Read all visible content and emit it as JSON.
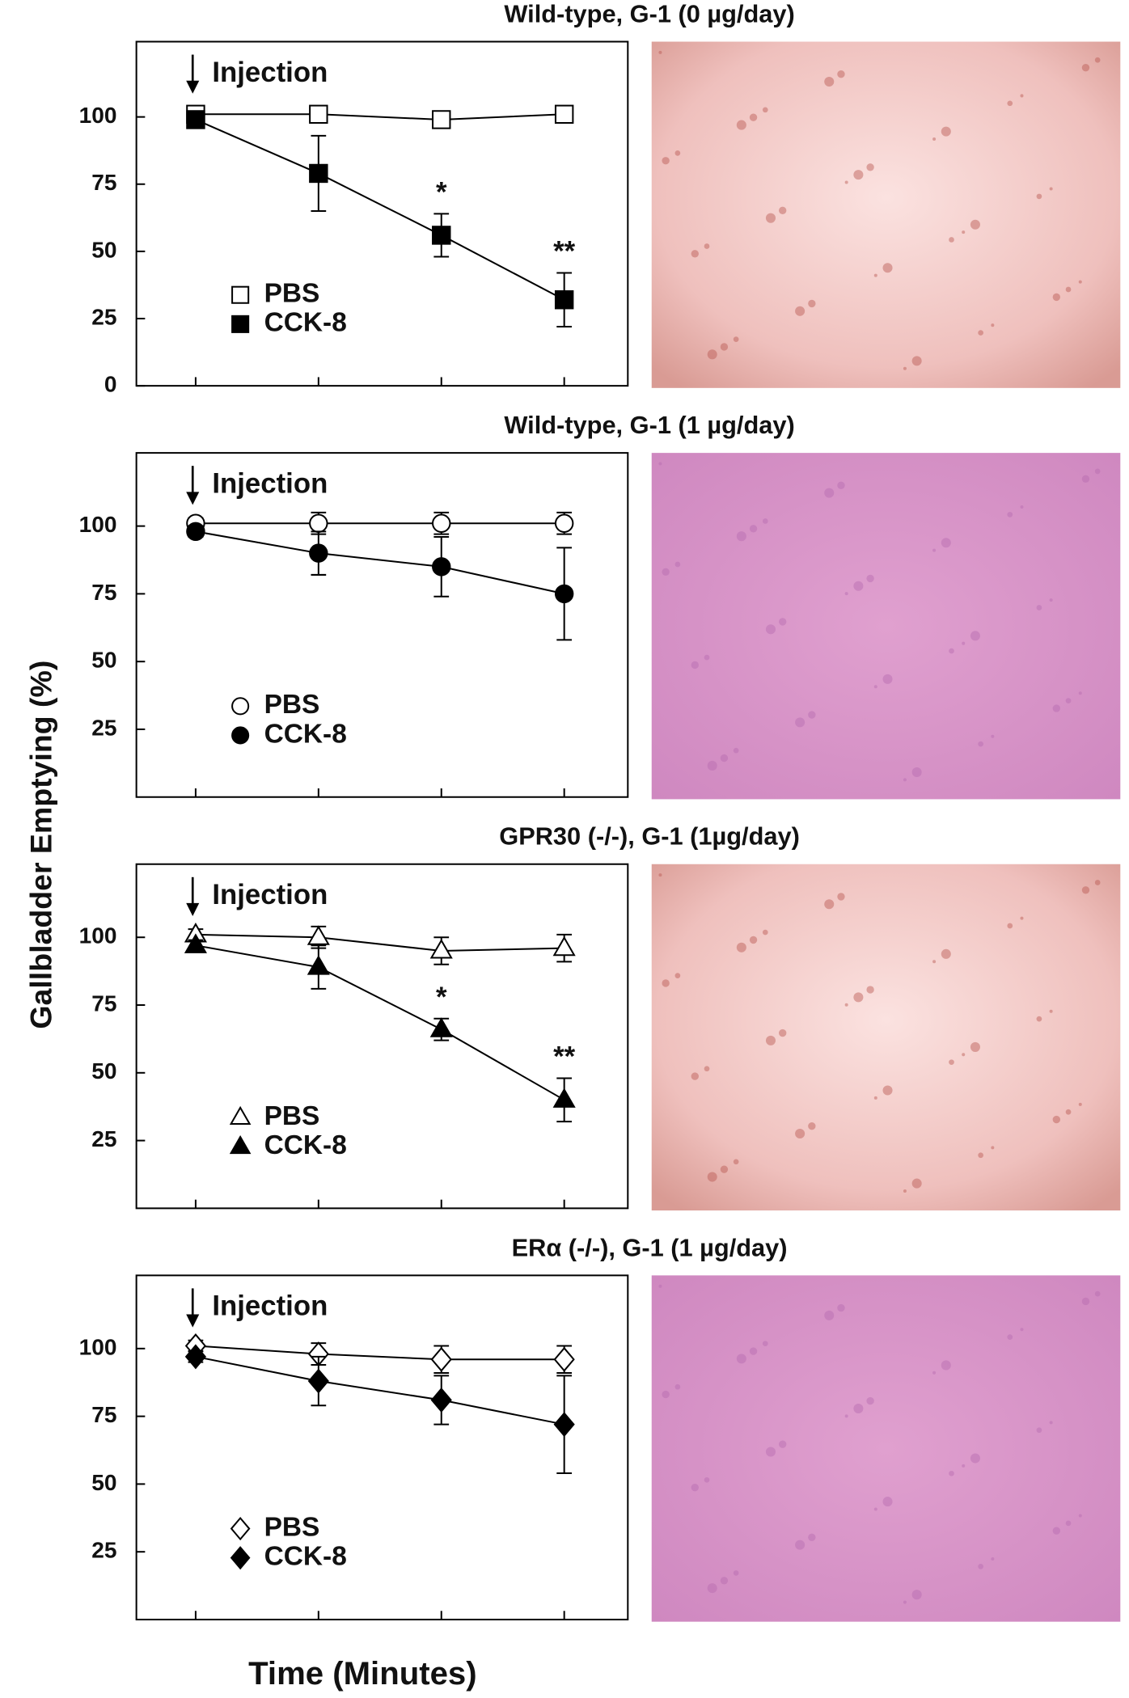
{
  "ylabel": "Gallbladder Emptying (%)",
  "xlabel": "Time (Minutes)",
  "chart_data": [
    {
      "type": "line",
      "title": "Wild-type, G-1 (0 µg/day)",
      "annotation": "Injection",
      "categories": [
        null,
        null,
        null,
        null
      ],
      "marker": "square",
      "ylim": [
        0,
        128
      ],
      "yticks": [
        0,
        25,
        50,
        75,
        100
      ],
      "series": [
        {
          "name": "PBS",
          "color": "#000000",
          "fill": "#ffffff",
          "values": [
            101,
            101,
            99,
            101
          ],
          "errors": [
            2,
            3,
            3,
            3
          ]
        },
        {
          "name": "CCK-8",
          "color": "#000000",
          "fill": "#000000",
          "values": [
            99,
            79,
            56,
            32
          ],
          "errors": [
            2,
            14,
            8,
            10
          ],
          "value_labels": [
            null,
            null,
            "*",
            "**"
          ]
        }
      ]
    },
    {
      "type": "line",
      "title": "Wild-type, G-1 (1 µg/day)",
      "annotation": "Injection",
      "categories": [
        null,
        null,
        null,
        null
      ],
      "marker": "circle",
      "ylim": [
        0,
        127
      ],
      "yticks": [
        25,
        50,
        75,
        100
      ],
      "series": [
        {
          "name": "PBS",
          "color": "#000000",
          "fill": "#ffffff",
          "values": [
            101,
            101,
            101,
            101
          ],
          "errors": [
            2,
            4,
            4,
            4
          ]
        },
        {
          "name": "CCK-8",
          "color": "#000000",
          "fill": "#000000",
          "values": [
            98,
            90,
            85,
            75
          ],
          "errors": [
            2,
            8,
            11,
            17
          ]
        }
      ]
    },
    {
      "type": "line",
      "title": "GPR30 (-/-), G-1 (1µg/day)",
      "annotation": "Injection",
      "categories": [
        null,
        null,
        null,
        null
      ],
      "marker": "triangle",
      "ylim": [
        0,
        127
      ],
      "yticks": [
        25,
        50,
        75,
        100
      ],
      "series": [
        {
          "name": "PBS",
          "color": "#000000",
          "fill": "#ffffff",
          "values": [
            101,
            100,
            95,
            96
          ],
          "errors": [
            2,
            4,
            5,
            5
          ]
        },
        {
          "name": "CCK-8",
          "color": "#000000",
          "fill": "#000000",
          "values": [
            97,
            89,
            66,
            40
          ],
          "errors": [
            2,
            8,
            4,
            8
          ],
          "value_labels": [
            null,
            null,
            "*",
            "**"
          ]
        }
      ]
    },
    {
      "type": "line",
      "title": "ERα (-/-), G-1 (1 µg/day)",
      "annotation": "Injection",
      "categories": [
        null,
        null,
        null,
        null
      ],
      "marker": "diamond",
      "ylim": [
        0,
        127
      ],
      "yticks": [
        25,
        50,
        75,
        100
      ],
      "series": [
        {
          "name": "PBS",
          "color": "#000000",
          "fill": "#ffffff",
          "values": [
            101,
            98,
            96,
            96
          ],
          "errors": [
            2,
            4,
            5,
            5
          ]
        },
        {
          "name": "CCK-8",
          "color": "#000000",
          "fill": "#000000",
          "values": [
            97,
            88,
            81,
            72
          ],
          "errors": [
            2,
            9,
            9,
            18
          ]
        }
      ]
    }
  ]
}
